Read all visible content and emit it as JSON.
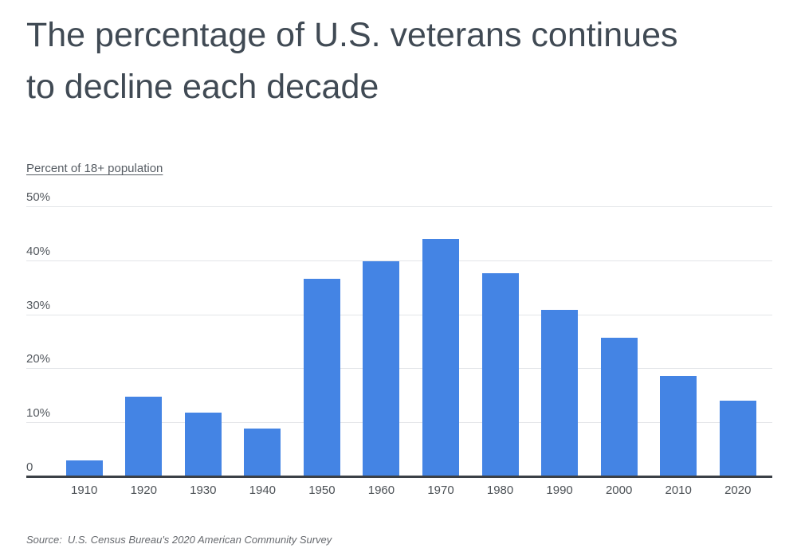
{
  "chart_data": {
    "type": "bar",
    "title": "The percentage of U.S. veterans continues to decline each decade",
    "title_lines": [
      "The percentage of U.S. veterans continues",
      "to decline each decade"
    ],
    "ylabel": "Percent of 18+ population",
    "xlabel": "",
    "categories": [
      "1910",
      "1920",
      "1930",
      "1940",
      "1950",
      "1960",
      "1970",
      "1980",
      "1990",
      "2000",
      "2010",
      "2020"
    ],
    "values": [
      3.1,
      14.9,
      12.0,
      9.0,
      36.8,
      40.0,
      44.1,
      37.8,
      31.0,
      25.8,
      18.8,
      14.1
    ],
    "ylim": [
      0,
      50
    ],
    "y_ticks": [
      {
        "label": "50%",
        "v": 50
      },
      {
        "label": "40%",
        "v": 40
      },
      {
        "label": "30%",
        "v": 30
      },
      {
        "label": "20%",
        "v": 20
      },
      {
        "label": "10%",
        "v": 10
      },
      {
        "label": "0",
        "v": 0
      }
    ],
    "grid": "horizontal",
    "legend": "none",
    "bar_color": "#4484e4"
  },
  "source": {
    "label": "Source:",
    "text": "U.S. Census Bureau's 2020 American Community Survey"
  },
  "colors": {
    "background": "#ffffff",
    "title": "#404a54",
    "subtitle": "#565c63",
    "y_tick": "#54595f",
    "x_tick": "#4c5156",
    "gridline": "#e3e5e8",
    "baseline": "#3b4046",
    "bar": "#4484e4",
    "source": "#66696e"
  }
}
